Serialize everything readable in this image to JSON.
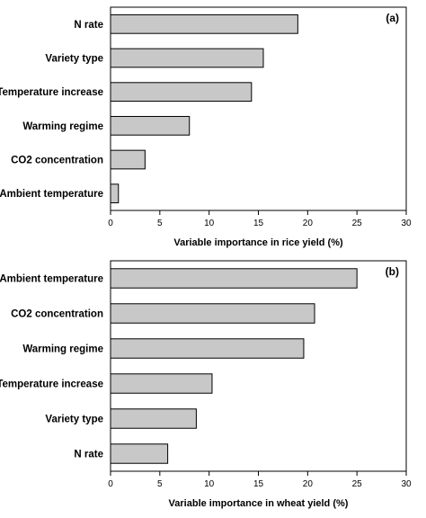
{
  "chart_data": [
    {
      "type": "bar",
      "orientation": "horizontal",
      "panel_label": "(a)",
      "categories": [
        "N rate",
        "Variety type",
        "Temperature increase",
        "Warming regime",
        "CO2 concentration",
        "Ambient temperature"
      ],
      "values": [
        19.0,
        15.5,
        14.3,
        8.0,
        3.5,
        0.8
      ],
      "xlabel": "Variable importance in rice yield (%)",
      "xlim": [
        0,
        30
      ],
      "xticks": [
        0,
        5,
        10,
        15,
        20,
        25,
        30
      ],
      "bar_color": "#c8c8c8",
      "grid": false
    },
    {
      "type": "bar",
      "orientation": "horizontal",
      "panel_label": "(b)",
      "categories": [
        "Ambient temperature",
        "CO2 concentration",
        "Warming regime",
        "Temperature increase",
        "Variety type",
        "N rate"
      ],
      "values": [
        25.0,
        20.7,
        19.6,
        10.3,
        8.7,
        5.8
      ],
      "xlabel": "Variable importance in wheat yield (%)",
      "xlim": [
        0,
        30
      ],
      "xticks": [
        0,
        5,
        10,
        15,
        20,
        25,
        30
      ],
      "bar_color": "#c8c8c8",
      "grid": false
    }
  ]
}
